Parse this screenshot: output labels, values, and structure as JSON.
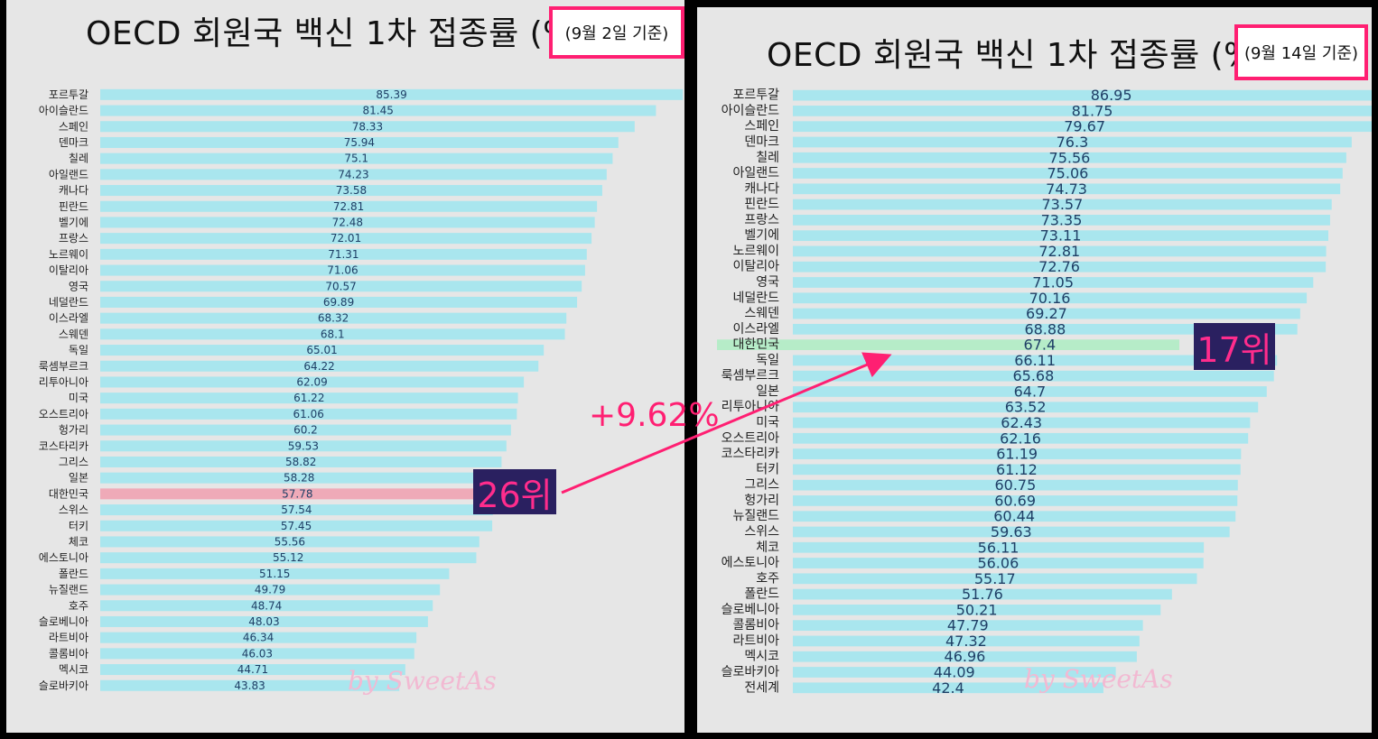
{
  "colors": {
    "bar": "#a9e6ee",
    "highlight_left": "#efaab8",
    "highlight_right": "#b6ecc8",
    "accent": "#ff1f72",
    "badge_bg": "#2a2060",
    "value_text": "#1f3f66"
  },
  "left": {
    "title": "OECD 회원국 백신 1차 접종률 (%",
    "date_note": "(9월 2일 기준)",
    "rank_badge": "26위",
    "watermark": "by SweetAs"
  },
  "right": {
    "title": "OECD 회원국 백신 1차 접종률 (%",
    "date_note": "(9월 14일 기준)",
    "rank_badge": "17위",
    "watermark": "by SweetAs"
  },
  "change_label": "+9.62%",
  "chart_data": [
    {
      "type": "bar",
      "orientation": "horizontal",
      "title": "OECD 회원국 백신 1차 접종률 (%",
      "subtitle": "(9월 2일 기준)",
      "xlim": [
        0,
        90
      ],
      "highlight": "대한민국",
      "categories": [
        "포르투갈",
        "아이슬란드",
        "스페인",
        "덴마크",
        "칠레",
        "아일랜드",
        "캐나다",
        "핀란드",
        "벨기에",
        "프랑스",
        "노르웨이",
        "이탈리아",
        "영국",
        "네덜란드",
        "이스라엘",
        "스웨덴",
        "독일",
        "룩셈부르크",
        "리투아니아",
        "미국",
        "오스트리아",
        "헝가리",
        "코스타리카",
        "그리스",
        "일본",
        "대한민국",
        "스위스",
        "터키",
        "체코",
        "에스토니아",
        "폴란드",
        "뉴질랜드",
        "호주",
        "슬로베니아",
        "라트비아",
        "콜롬비아",
        "멕시코",
        "슬로바키아"
      ],
      "values": [
        "85.39",
        "81.45",
        "78.33",
        "75.94",
        "75.1",
        "74.23",
        "73.58",
        "72.81",
        "72.48",
        "72.01",
        "71.31",
        "71.06",
        "70.57",
        "69.89",
        "68.32",
        "68.1",
        "65.01",
        "64.22",
        "62.09",
        "61.22",
        "61.06",
        "60.2",
        "59.53",
        "58.82",
        "58.28",
        "57.78",
        "57.54",
        "57.45",
        "55.56",
        "55.12",
        "51.15",
        "49.79",
        "48.74",
        "48.03",
        "46.34",
        "46.03",
        "44.71",
        "43.83"
      ]
    },
    {
      "type": "bar",
      "orientation": "horizontal",
      "title": "OECD 회원국 백신 1차 접종률 (%",
      "subtitle": "(9월 14일 기준)",
      "xlim": [
        0,
        90
      ],
      "highlight": "대한민국",
      "categories": [
        "포르투갈",
        "아이슬란드",
        "스페인",
        "덴마크",
        "칠레",
        "아일랜드",
        "캐나다",
        "핀란드",
        "프랑스",
        "벨기에",
        "노르웨이",
        "이탈리아",
        "영국",
        "네덜란드",
        "스웨덴",
        "이스라엘",
        "대한민국",
        "독일",
        "룩셈부르크",
        "일본",
        "리투아니아",
        "미국",
        "오스트리아",
        "코스타리카",
        "터키",
        "그리스",
        "헝가리",
        "뉴질랜드",
        "스위스",
        "체코",
        "에스토니아",
        "호주",
        "폴란드",
        "슬로베니아",
        "콜롬비아",
        "라트비아",
        "멕시코",
        "슬로바키아",
        "전세계"
      ],
      "values": [
        "86.95",
        "81.75",
        "79.67",
        "76.3",
        "75.56",
        "75.06",
        "74.73",
        "73.57",
        "73.35",
        "73.11",
        "72.81",
        "72.76",
        "71.05",
        "70.16",
        "69.27",
        "68.88",
        "67.4",
        "66.11",
        "65.68",
        "64.7",
        "63.52",
        "62.43",
        "62.16",
        "61.19",
        "61.12",
        "60.75",
        "60.69",
        "60.44",
        "59.63",
        "56.11",
        "56.06",
        "55.17",
        "51.76",
        "50.21",
        "47.79",
        "47.32",
        "46.96",
        "44.09",
        "42.4"
      ]
    }
  ]
}
